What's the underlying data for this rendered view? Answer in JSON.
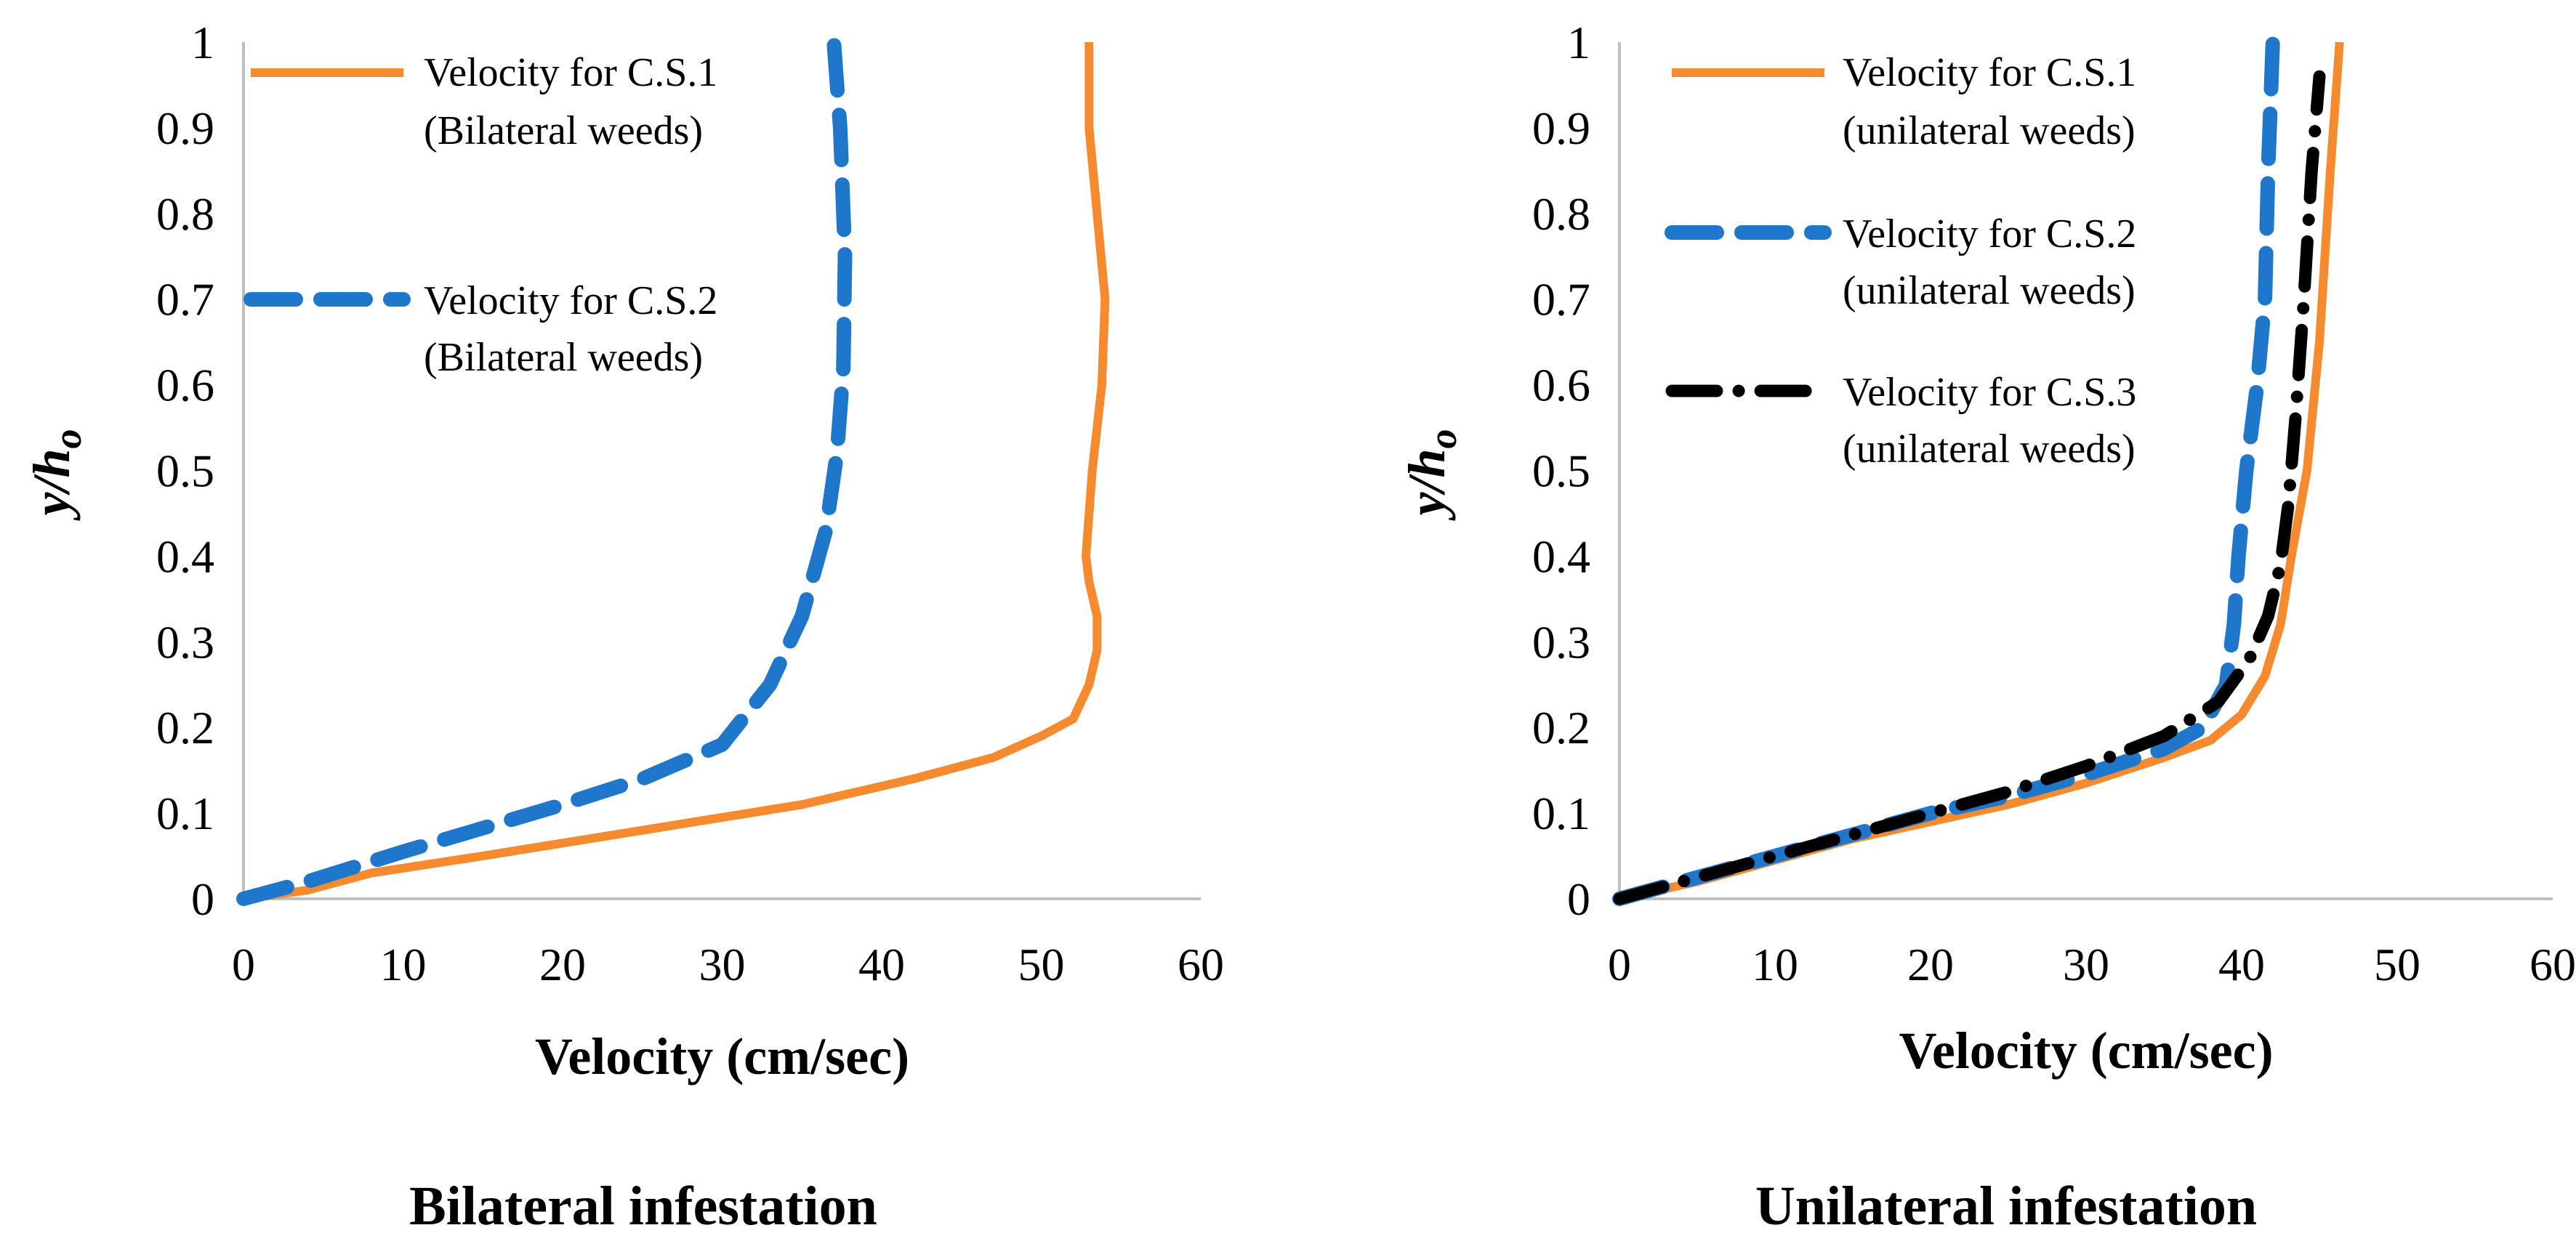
{
  "chart_data": [
    {
      "type": "line",
      "title": "",
      "caption": "Bilateral infestation",
      "xlabel": "Velocity (cm/sec)",
      "ylabel": "y/h",
      "ylabel_sub": "o",
      "xlim": [
        0,
        60
      ],
      "ylim": [
        0,
        1
      ],
      "xticks": [
        "0",
        "10",
        "20",
        "30",
        "40",
        "50",
        "60"
      ],
      "yticks": [
        "0",
        "0.1",
        "0.2",
        "0.3",
        "0.4",
        "0.5",
        "0.6",
        "0.7",
        "0.8",
        "0.9",
        "1"
      ],
      "grid": false,
      "series": [
        {
          "name": "Velocity for C.S.1",
          "name_line2": "(Bilateral weeds)",
          "color": "#F58A2E",
          "style": "solid",
          "x": [
            0,
            4,
            8,
            15,
            25,
            35,
            42,
            47,
            50,
            52,
            53,
            53.5,
            53.5,
            53,
            52.8,
            53.2,
            53.8,
            54,
            53.5,
            53,
            53
          ],
          "y": [
            0,
            0.01,
            0.03,
            0.05,
            0.08,
            0.11,
            0.14,
            0.165,
            0.19,
            0.21,
            0.25,
            0.29,
            0.33,
            0.37,
            0.4,
            0.5,
            0.6,
            0.7,
            0.8,
            0.9,
            1.0
          ]
        },
        {
          "name": "Velocity for C.S.2",
          "name_line2": "(Bilateral weeds)",
          "color": "#1F77CC",
          "style": "dashed",
          "x": [
            0,
            4,
            10,
            20,
            25,
            30,
            33,
            35,
            36.5,
            37.2,
            37.6,
            37.7,
            37.4,
            37
          ],
          "y": [
            0,
            0.02,
            0.055,
            0.11,
            0.14,
            0.18,
            0.25,
            0.33,
            0.43,
            0.52,
            0.62,
            0.75,
            0.9,
            1.0
          ]
        }
      ],
      "legend_position": "top-left"
    },
    {
      "type": "line",
      "title": "",
      "caption": "Unilateral infestation",
      "xlabel": "Velocity (cm/sec)",
      "ylabel": "y/h",
      "ylabel_sub": "o",
      "xlim": [
        0,
        60
      ],
      "ylim": [
        0,
        1
      ],
      "xticks": [
        "0",
        "10",
        "20",
        "30",
        "40",
        "50",
        "60"
      ],
      "yticks": [
        "0",
        "0.1",
        "0.2",
        "0.3",
        "0.4",
        "0.5",
        "0.6",
        "0.7",
        "0.8",
        "0.9",
        "1"
      ],
      "grid": false,
      "series": [
        {
          "name": "Velocity for C.S.1",
          "name_line2": "(unilateral weeds)",
          "color": "#F58A2E",
          "style": "solid",
          "x": [
            0,
            5,
            10,
            15,
            20,
            25,
            30,
            35,
            38,
            40,
            41.5,
            42.5,
            43.2,
            44.2,
            45,
            45.7,
            46.3
          ],
          "y": [
            0,
            0.02,
            0.045,
            0.07,
            0.09,
            0.11,
            0.135,
            0.165,
            0.185,
            0.215,
            0.26,
            0.32,
            0.4,
            0.5,
            0.65,
            0.85,
            1.0
          ]
        },
        {
          "name": "Velocity for C.S.2",
          "name_line2": "(unilateral weeds)",
          "color": "#1F77CC",
          "style": "dashed",
          "x": [
            0,
            5,
            10,
            15,
            20,
            25,
            30,
            35,
            37.5,
            39,
            39.5,
            39.8,
            40.3,
            41,
            41.5,
            41.7,
            42
          ],
          "y": [
            0,
            0.025,
            0.05,
            0.075,
            0.1,
            0.12,
            0.145,
            0.175,
            0.2,
            0.25,
            0.32,
            0.4,
            0.5,
            0.6,
            0.7,
            0.85,
            1.0
          ]
        },
        {
          "name": "Velocity for C.S.3",
          "name_line2": "(unilateral weeds)",
          "color": "#000000",
          "style": "dash-dot",
          "x": [
            0,
            5,
            10,
            15,
            20,
            25,
            30,
            35,
            38.5,
            40.5,
            41.7,
            42.5,
            43,
            43.5,
            44,
            44.5,
            45
          ],
          "y": [
            0,
            0.025,
            0.05,
            0.075,
            0.1,
            0.125,
            0.155,
            0.19,
            0.23,
            0.28,
            0.33,
            0.39,
            0.46,
            0.57,
            0.7,
            0.85,
            0.96
          ]
        }
      ],
      "legend_position": "top-left"
    }
  ]
}
